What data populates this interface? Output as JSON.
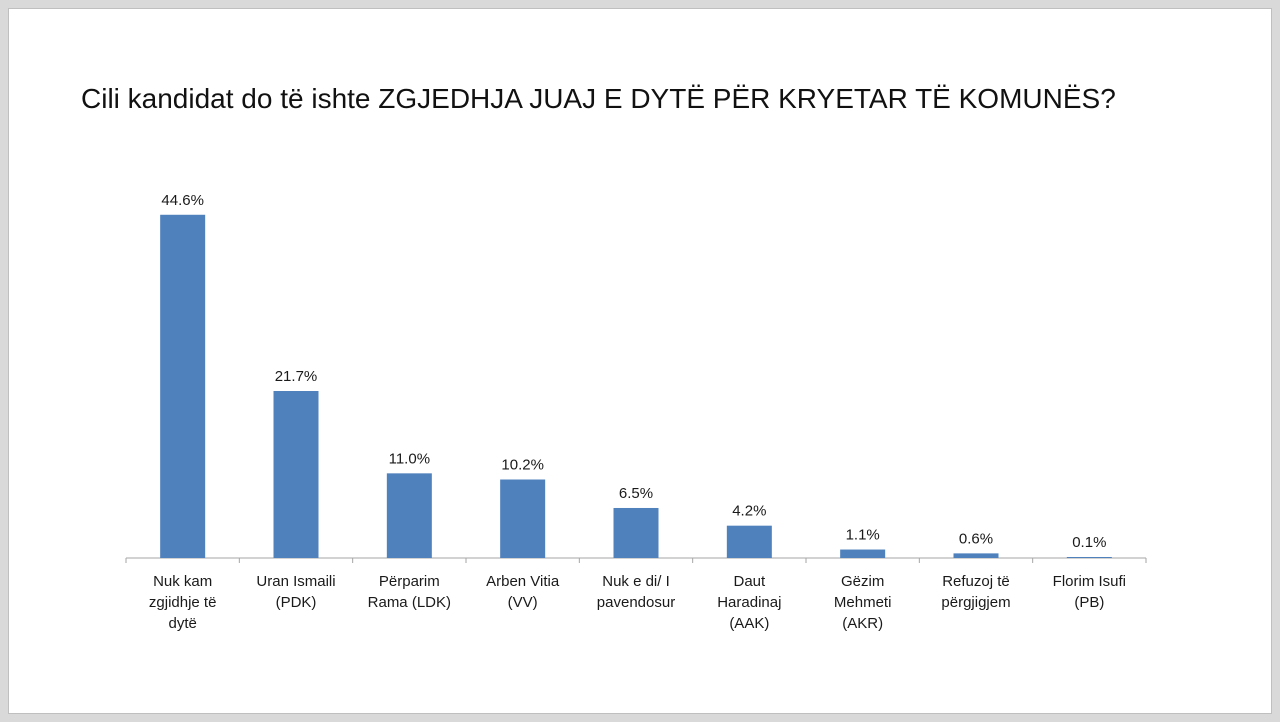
{
  "chart_data": {
    "type": "bar",
    "title": "Cili kandidat do të ishte ZGJEDHJA JUAJ E DYTË PËR KRYETAR TË KOMUNËS?",
    "xlabel": "",
    "ylabel": "",
    "categories": [
      [
        "Nuk kam",
        "zgjidhje të",
        "dytë"
      ],
      [
        "Uran Ismaili",
        "(PDK)"
      ],
      [
        "Përparim",
        "Rama (LDK)"
      ],
      [
        "Arben Vitia",
        "(VV)"
      ],
      [
        "Nuk e di/ I",
        "pavendosur"
      ],
      [
        "Daut",
        "Haradinaj",
        "(AAK)"
      ],
      [
        "Gëzim",
        "Mehmeti",
        "(AKR)"
      ],
      [
        "Refuzoj të",
        "përgjigjem"
      ],
      [
        "Florim Isufi",
        "(PB)"
      ]
    ],
    "values": [
      44.6,
      21.7,
      11.0,
      10.2,
      6.5,
      4.2,
      1.1,
      0.6,
      0.1
    ],
    "value_labels": [
      "44.6%",
      "21.7%",
      "11.0%",
      "10.2%",
      "6.5%",
      "4.2%",
      "1.1%",
      "0.6%",
      "0.1%"
    ],
    "ylim": [
      0,
      46
    ],
    "grid": false,
    "legend": "none",
    "bar_color": "#4f81bd",
    "axis_color": "#a6a6a6"
  }
}
